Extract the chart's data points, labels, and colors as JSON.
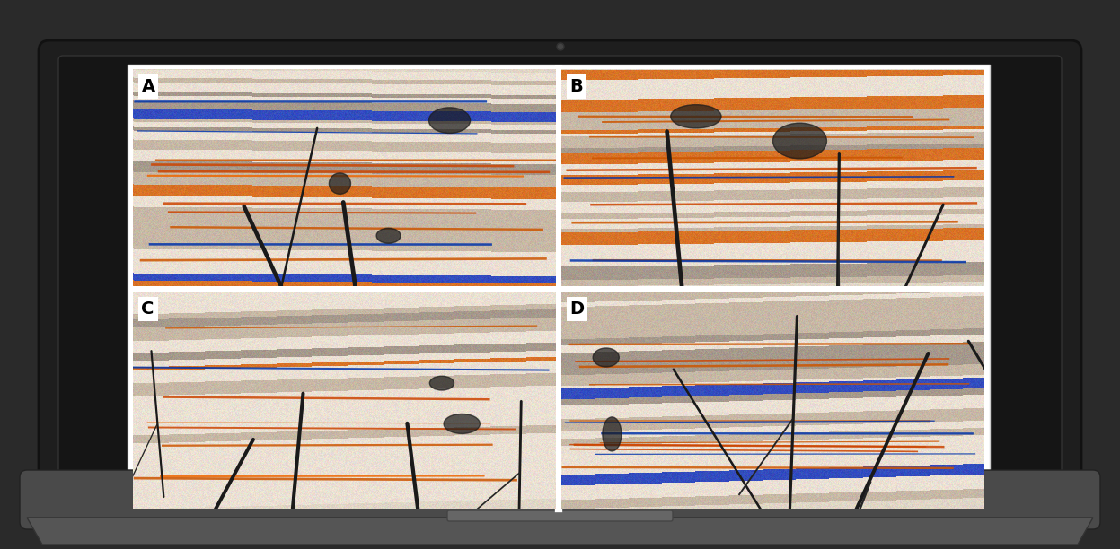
{
  "figsize": [
    12.47,
    6.12
  ],
  "dpi": 100,
  "laptop_body_color": "#2a2a2a",
  "laptop_screen_bg": "#1a1a1a",
  "laptop_bezel_color": "#1c1c1c",
  "laptop_base_color": "#3a3a3a",
  "screen_white_bg": "#ffffff",
  "panel_labels": [
    "A",
    "B",
    "C",
    "D"
  ],
  "label_fontsize": 14,
  "label_bg": "#ffffff",
  "seed_A": 42,
  "seed_B": 123,
  "seed_C": 77,
  "seed_D": 200,
  "grid_rows": 2,
  "grid_cols": 2
}
